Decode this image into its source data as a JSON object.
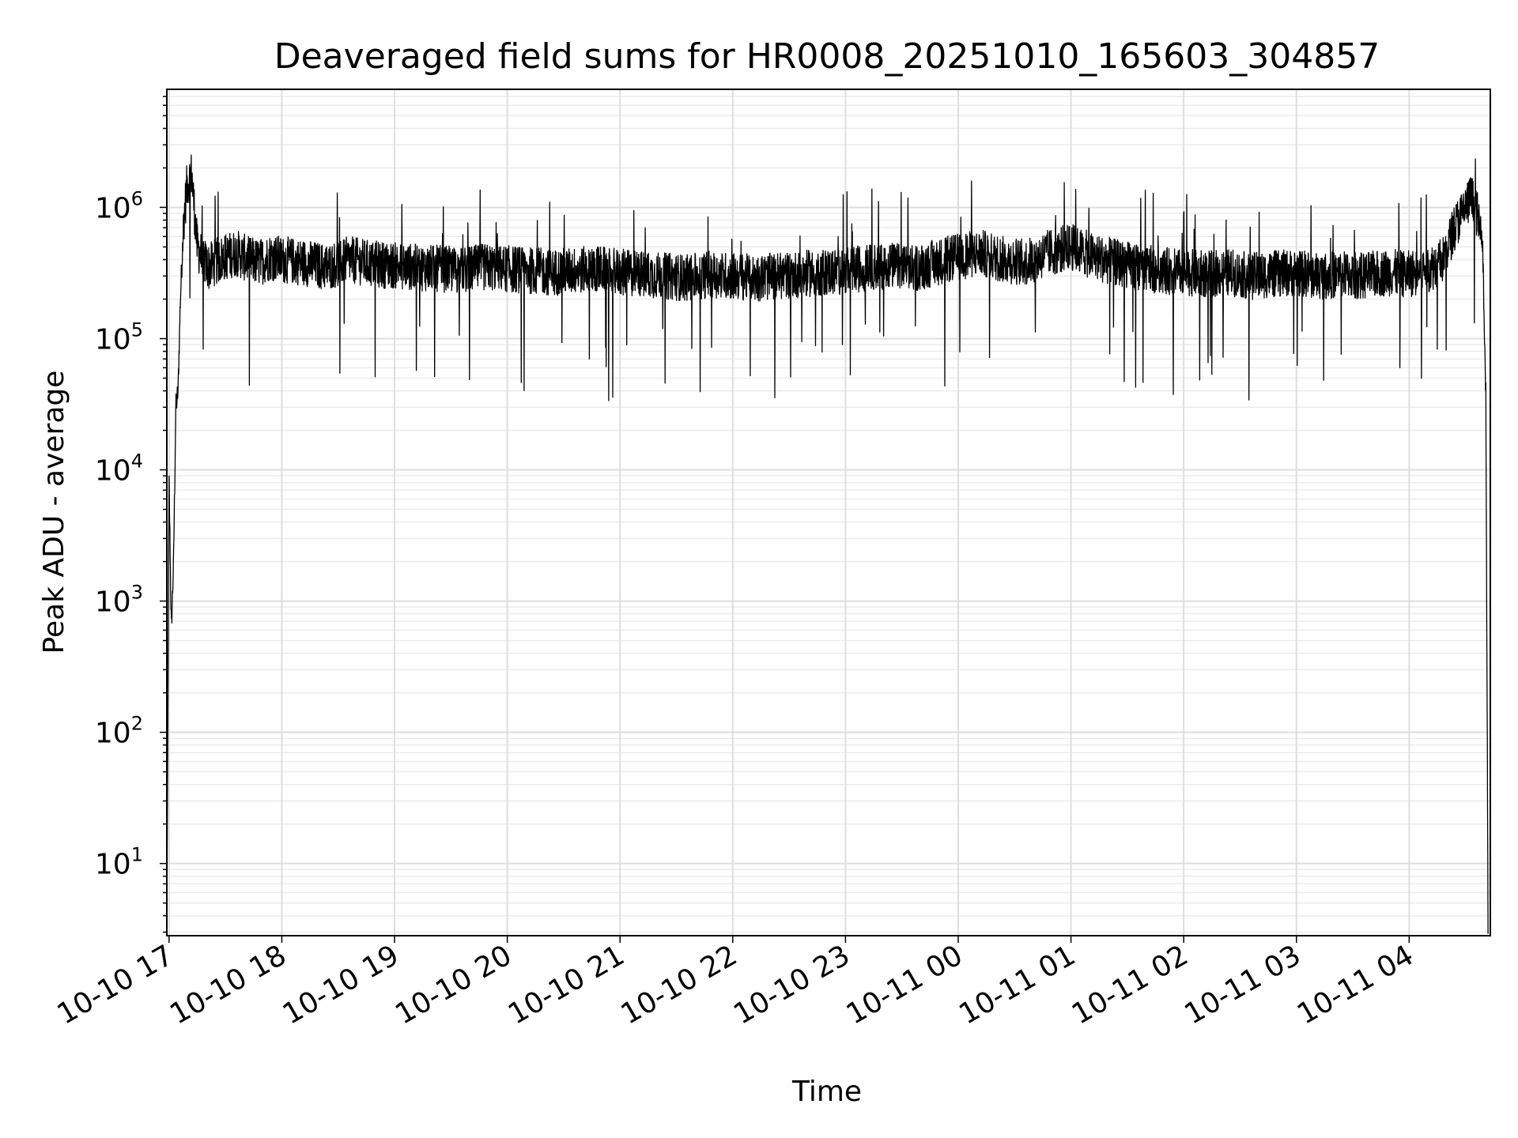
{
  "chart_data": {
    "type": "line",
    "title": "Deaveraged field sums for HR0008_20251010_165603_304857",
    "xlabel": "Time",
    "ylabel": "Peak ADU - average",
    "yscale": "log",
    "grid": true,
    "xlim_hours": [
      16.98,
      28.72
    ],
    "ylim_log10": [
      0.45,
      6.9
    ],
    "x_ticks": [
      {
        "label": "10-10 17",
        "hour": 17
      },
      {
        "label": "10-10 18",
        "hour": 18
      },
      {
        "label": "10-10 19",
        "hour": 19
      },
      {
        "label": "10-10 20",
        "hour": 20
      },
      {
        "label": "10-10 21",
        "hour": 21
      },
      {
        "label": "10-10 22",
        "hour": 22
      },
      {
        "label": "10-10 23",
        "hour": 23
      },
      {
        "label": "10-11 00",
        "hour": 24
      },
      {
        "label": "10-11 01",
        "hour": 25
      },
      {
        "label": "10-11 02",
        "hour": 26
      },
      {
        "label": "10-11 03",
        "hour": 27
      },
      {
        "label": "10-11 04",
        "hour": 28
      }
    ],
    "y_ticks": [
      {
        "base": "10",
        "exp": "1",
        "log": 1
      },
      {
        "base": "10",
        "exp": "2",
        "log": 2
      },
      {
        "base": "10",
        "exp": "3",
        "log": 3
      },
      {
        "base": "10",
        "exp": "4",
        "log": 4
      },
      {
        "base": "10",
        "exp": "5",
        "log": 5
      },
      {
        "base": "10",
        "exp": "6",
        "log": 6
      }
    ],
    "series": [
      {
        "name": "Peak ADU - average",
        "color": "#000000",
        "x_hours": [
          16.98,
          17.0,
          17.02,
          17.04,
          17.06,
          17.08,
          17.1,
          17.13,
          17.16,
          17.2,
          17.25,
          17.3,
          17.35,
          17.4,
          17.5,
          17.6,
          17.7,
          17.8,
          17.9,
          18.0,
          18.2,
          18.4,
          18.6,
          18.8,
          19.0,
          19.2,
          19.4,
          19.6,
          19.8,
          20.0,
          20.2,
          20.4,
          20.6,
          20.8,
          21.0,
          21.2,
          21.4,
          21.6,
          21.8,
          22.0,
          22.2,
          22.4,
          22.6,
          22.8,
          23.0,
          23.2,
          23.4,
          23.6,
          23.8,
          24.0,
          24.2,
          24.4,
          24.6,
          24.8,
          25.0,
          25.2,
          25.4,
          25.6,
          25.8,
          26.0,
          26.2,
          26.4,
          26.6,
          26.8,
          27.0,
          27.2,
          27.4,
          27.6,
          27.8,
          28.0,
          28.2,
          28.3,
          28.4,
          28.5,
          28.55,
          28.6,
          28.65,
          28.68,
          28.7
        ],
        "y": [
          3,
          8000,
          600,
          2000,
          30000,
          40000,
          200000,
          800000,
          1500000,
          1800000,
          500000,
          400000,
          350000,
          380000,
          420000,
          450000,
          400000,
          380000,
          420000,
          400000,
          380000,
          350000,
          400000,
          370000,
          360000,
          350000,
          340000,
          330000,
          350000,
          340000,
          330000,
          320000,
          330000,
          340000,
          320000,
          310000,
          300000,
          290000,
          310000,
          300000,
          290000,
          300000,
          310000,
          320000,
          330000,
          350000,
          360000,
          340000,
          380000,
          420000,
          450000,
          400000,
          380000,
          450000,
          500000,
          420000,
          380000,
          350000,
          330000,
          320000,
          310000,
          320000,
          300000,
          310000,
          320000,
          300000,
          310000,
          300000,
          320000,
          310000,
          350000,
          400000,
          700000,
          1000000,
          1200000,
          900000,
          600000,
          40000,
          3
        ]
      }
    ]
  }
}
